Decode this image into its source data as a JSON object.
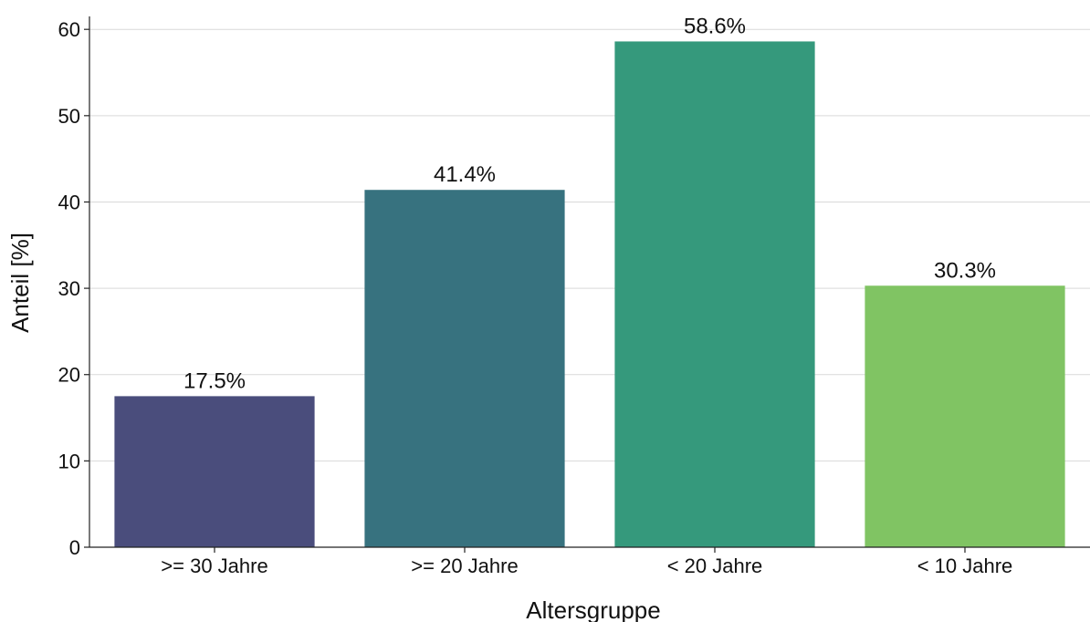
{
  "chart_data": {
    "type": "bar",
    "categories": [
      ">= 30 Jahre",
      ">= 20 Jahre",
      "< 20 Jahre",
      "< 10 Jahre"
    ],
    "values": [
      17.5,
      41.4,
      58.6,
      30.3
    ],
    "value_labels": [
      "17.5%",
      "41.4%",
      "58.6%",
      "30.3%"
    ],
    "colors": [
      "#4a4d7c",
      "#37727f",
      "#35997c",
      "#80c463"
    ],
    "xlabel": "Altersgruppe",
    "ylabel": "Anteil [%]",
    "ylim": [
      0,
      61.5
    ],
    "yticks": [
      0,
      10,
      20,
      30,
      40,
      50,
      60
    ],
    "grid": "horizontal",
    "legend": "none"
  }
}
